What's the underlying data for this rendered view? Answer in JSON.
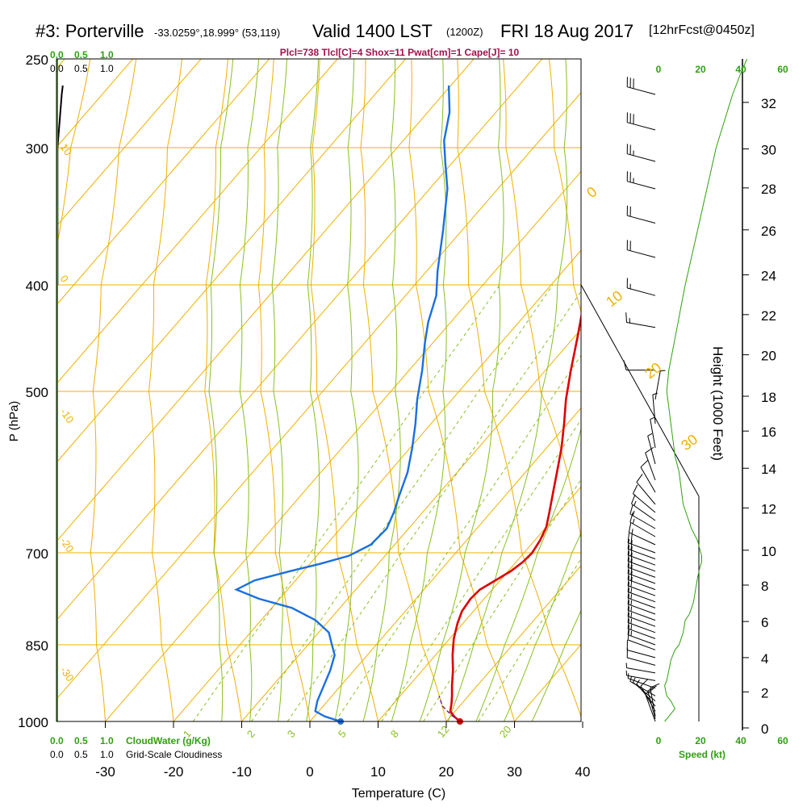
{
  "header": {
    "station": "#3: Porterville",
    "coords": "-33.0259°,18.999° (53,119)",
    "valid": "Valid 1400 LST",
    "zulu": "(1200Z)",
    "date": "FRI 18 Aug 2017",
    "fcst": "[12hrFcst@0450z]"
  },
  "params_line": "Plcl=738 Tlcl[C]=4 Shox=11 Pwat[cm]=1 Cape[J]= 10",
  "colors": {
    "temperature": "#dd0000",
    "dewpoint": "#1a6fe0",
    "isotherm": "#f0b000",
    "dry_adiabat": "#f0b000",
    "moist_adiabat": "#88c020",
    "mixing_ratio": "#88c020",
    "green_text": "#30a010",
    "params_text": "#a0104a"
  },
  "chart_data": {
    "type": "line",
    "title": "#3: Porterville",
    "xlabel": "Temperature (C)",
    "ylabel": "P (hPa)",
    "y2label": "Height (1000 Feet)",
    "xlim": [
      -35,
      45
    ],
    "ylim": [
      1000,
      250
    ],
    "x_ticks": [
      "-30",
      "-20",
      "-10",
      "0",
      "10",
      "20",
      "30",
      "40"
    ],
    "x_tick_values": [
      -30,
      -20,
      -10,
      0,
      10,
      20,
      30,
      40
    ],
    "p_ticks": [
      "250",
      "300",
      "400",
      "500",
      "700",
      "850",
      "1000"
    ],
    "p_tick_values": [
      250,
      300,
      400,
      500,
      700,
      850,
      1000
    ],
    "height_ticks": [
      "0",
      "2",
      "4",
      "6",
      "8",
      "10",
      "12",
      "14",
      "16",
      "18",
      "20",
      "22",
      "24",
      "26",
      "28",
      "30",
      "32"
    ],
    "cloud_scale_top_green": [
      "0.0",
      "0.5",
      "1.0"
    ],
    "cloud_scale_top_black": [
      "0.0",
      "0.5",
      "1.0"
    ],
    "cloud_scale_bottom_green": [
      "0.0",
      "0.5",
      "1.0"
    ],
    "cloud_scale_bottom_black": [
      "0.0",
      "0.5",
      "1.0"
    ],
    "cloudwater_label": "CloudWater (g/Kg)",
    "cloudiness_label": "Grid-Scale Cloudiness",
    "speed_ticks": [
      "0",
      "20",
      "40",
      "60"
    ],
    "speed_label": "Speed (kt)",
    "dry_adiabat_labels": [
      "-10",
      "0",
      "10",
      "20",
      "30"
    ],
    "isotherm_side_labels": [
      "10",
      "0",
      "-10",
      "-20",
      "-30"
    ],
    "mixing_ratio_labels": [
      "1",
      "2",
      "3",
      "5",
      "8",
      "12",
      "20"
    ],
    "series": [
      {
        "name": "Temperature",
        "points": [
          [
            22.0,
            1000
          ],
          [
            20.5,
            990
          ],
          [
            19.3,
            980
          ],
          [
            18.5,
            965
          ],
          [
            17.6,
            950
          ],
          [
            16.3,
            930
          ],
          [
            14.5,
            900
          ],
          [
            12.5,
            870
          ],
          [
            10.6,
            840
          ],
          [
            9.2,
            815
          ],
          [
            8.3,
            795
          ],
          [
            8.0,
            775
          ],
          [
            8.2,
            760
          ],
          [
            9.3,
            745
          ],
          [
            10.4,
            730
          ],
          [
            11.0,
            715
          ],
          [
            11.2,
            700
          ],
          [
            10.8,
            685
          ],
          [
            10.0,
            668
          ],
          [
            8.6,
            650
          ],
          [
            6.6,
            625
          ],
          [
            4.6,
            600
          ],
          [
            2.2,
            570
          ],
          [
            -0.5,
            540
          ],
          [
            -3.3,
            510
          ],
          [
            -6.3,
            480
          ],
          [
            -9.4,
            450
          ],
          [
            -12.6,
            420
          ],
          [
            -15.2,
            400
          ],
          [
            -19.2,
            370
          ],
          [
            -23.9,
            340
          ],
          [
            -28.9,
            310
          ],
          [
            -32.7,
            290
          ],
          [
            -38.3,
            265
          ]
        ]
      },
      {
        "name": "Dewpoint",
        "points": [
          [
            4.5,
            1000
          ],
          [
            1.5,
            990
          ],
          [
            -0.5,
            980
          ],
          [
            -1.5,
            960
          ],
          [
            -2.5,
            930
          ],
          [
            -3.5,
            900
          ],
          [
            -4.8,
            870
          ],
          [
            -6.5,
            850
          ],
          [
            -8.5,
            830
          ],
          [
            -12,
            810
          ],
          [
            -17,
            790
          ],
          [
            -23,
            775
          ],
          [
            -27.5,
            760
          ],
          [
            -26,
            745
          ],
          [
            -22,
            730
          ],
          [
            -18.5,
            718
          ],
          [
            -15.3,
            705
          ],
          [
            -13.5,
            690
          ],
          [
            -13.2,
            670
          ],
          [
            -14.2,
            650
          ],
          [
            -15.5,
            630
          ],
          [
            -17.3,
            600
          ],
          [
            -19.7,
            570
          ],
          [
            -22.3,
            540
          ],
          [
            -25.1,
            510
          ],
          [
            -28.1,
            480
          ],
          [
            -31.1,
            455
          ],
          [
            -33.3,
            435
          ],
          [
            -35.5,
            410
          ],
          [
            -38.4,
            390
          ],
          [
            -42.8,
            360
          ],
          [
            -47.4,
            330
          ],
          [
            -51.2,
            310
          ],
          [
            -54.0,
            296
          ],
          [
            -56.8,
            280
          ],
          [
            -60.3,
            265
          ]
        ]
      },
      {
        "name": "Parcel",
        "points": [
          [
            22.0,
            1000
          ],
          [
            20.0,
            988
          ],
          [
            17.5,
            970
          ],
          [
            16.6,
            960
          ],
          [
            15.7,
            950
          ]
        ]
      }
    ],
    "markers": [
      {
        "name": "Surface temperature",
        "x": 22.0,
        "p": 1000
      },
      {
        "name": "Surface dewpoint",
        "x": 4.5,
        "p": 1000
      }
    ],
    "cloud_water_profile": [
      [
        0.02,
        400
      ],
      [
        0.02,
        300
      ],
      [
        0.1,
        270
      ],
      [
        0.12,
        265
      ]
    ],
    "wind_speed_profile": [
      [
        3,
        1000
      ],
      [
        5,
        990
      ],
      [
        8,
        975
      ],
      [
        6,
        960
      ],
      [
        4,
        950
      ],
      [
        3,
        930
      ],
      [
        4,
        920
      ],
      [
        5,
        900
      ],
      [
        6,
        880
      ],
      [
        8,
        860
      ],
      [
        10,
        850
      ],
      [
        12,
        830
      ],
      [
        13,
        810
      ],
      [
        15,
        800
      ],
      [
        17,
        780
      ],
      [
        18,
        760
      ],
      [
        19,
        740
      ],
      [
        20,
        725
      ],
      [
        21,
        715
      ],
      [
        21,
        705
      ],
      [
        20,
        695
      ],
      [
        19,
        685
      ],
      [
        16,
        670
      ],
      [
        14,
        655
      ],
      [
        12,
        640
      ],
      [
        11,
        620
      ],
      [
        10,
        600
      ],
      [
        8,
        580
      ],
      [
        7,
        560
      ],
      [
        6,
        540
      ],
      [
        5,
        520
      ],
      [
        4,
        500
      ],
      [
        5,
        480
      ],
      [
        7,
        460
      ],
      [
        9,
        440
      ],
      [
        11,
        420
      ],
      [
        13,
        400
      ],
      [
        16,
        380
      ],
      [
        19,
        360
      ],
      [
        22,
        340
      ],
      [
        25,
        320
      ],
      [
        28,
        300
      ],
      [
        32,
        285
      ],
      [
        36,
        270
      ],
      [
        40,
        258
      ],
      [
        43,
        250
      ]
    ],
    "wind_barbs": [
      {
        "p": 1000,
        "dir": 340,
        "spd": 10
      },
      {
        "p": 995,
        "dir": 345,
        "spd": 10
      },
      {
        "p": 990,
        "dir": 350,
        "spd": 12
      },
      {
        "p": 980,
        "dir": 330,
        "spd": 10
      },
      {
        "p": 970,
        "dir": 320,
        "spd": 8
      },
      {
        "p": 960,
        "dir": 310,
        "spd": 6
      },
      {
        "p": 950,
        "dir": 300,
        "spd": 5
      },
      {
        "p": 935,
        "dir": 290,
        "spd": 5
      },
      {
        "p": 920,
        "dir": 280,
        "spd": 6
      },
      {
        "p": 905,
        "dir": 280,
        "spd": 8
      },
      {
        "p": 890,
        "dir": 285,
        "spd": 10
      },
      {
        "p": 875,
        "dir": 285,
        "spd": 12
      },
      {
        "p": 860,
        "dir": 290,
        "spd": 14
      },
      {
        "p": 850,
        "dir": 290,
        "spd": 15
      },
      {
        "p": 840,
        "dir": 290,
        "spd": 15
      },
      {
        "p": 830,
        "dir": 290,
        "spd": 16
      },
      {
        "p": 820,
        "dir": 290,
        "spd": 17
      },
      {
        "p": 810,
        "dir": 290,
        "spd": 18
      },
      {
        "p": 800,
        "dir": 290,
        "spd": 18
      },
      {
        "p": 790,
        "dir": 290,
        "spd": 19
      },
      {
        "p": 780,
        "dir": 290,
        "spd": 19
      },
      {
        "p": 770,
        "dir": 290,
        "spd": 20
      },
      {
        "p": 760,
        "dir": 290,
        "spd": 20
      },
      {
        "p": 750,
        "dir": 290,
        "spd": 20
      },
      {
        "p": 740,
        "dir": 290,
        "spd": 20
      },
      {
        "p": 730,
        "dir": 290,
        "spd": 20
      },
      {
        "p": 720,
        "dir": 290,
        "spd": 21
      },
      {
        "p": 710,
        "dir": 290,
        "spd": 21
      },
      {
        "p": 700,
        "dir": 290,
        "spd": 20
      },
      {
        "p": 690,
        "dir": 295,
        "spd": 19
      },
      {
        "p": 680,
        "dir": 300,
        "spd": 18
      },
      {
        "p": 670,
        "dir": 300,
        "spd": 16
      },
      {
        "p": 660,
        "dir": 305,
        "spd": 15
      },
      {
        "p": 650,
        "dir": 310,
        "spd": 13
      },
      {
        "p": 640,
        "dir": 320,
        "spd": 12
      },
      {
        "p": 625,
        "dir": 330,
        "spd": 11
      },
      {
        "p": 610,
        "dir": 340,
        "spd": 10
      },
      {
        "p": 590,
        "dir": 345,
        "spd": 8
      },
      {
        "p": 570,
        "dir": 350,
        "spd": 7
      },
      {
        "p": 540,
        "dir": 355,
        "spd": 6
      },
      {
        "p": 510,
        "dir": 10,
        "spd": 5
      },
      {
        "p": 480,
        "dir": 270,
        "spd": 10
      },
      {
        "p": 440,
        "dir": 280,
        "spd": 15
      },
      {
        "p": 410,
        "dir": 285,
        "spd": 17
      },
      {
        "p": 380,
        "dir": 285,
        "spd": 20
      },
      {
        "p": 355,
        "dir": 285,
        "spd": 22
      },
      {
        "p": 330,
        "dir": 285,
        "spd": 25
      },
      {
        "p": 310,
        "dir": 285,
        "spd": 27
      },
      {
        "p": 290,
        "dir": 285,
        "spd": 30
      },
      {
        "p": 270,
        "dir": 285,
        "spd": 33
      }
    ]
  }
}
